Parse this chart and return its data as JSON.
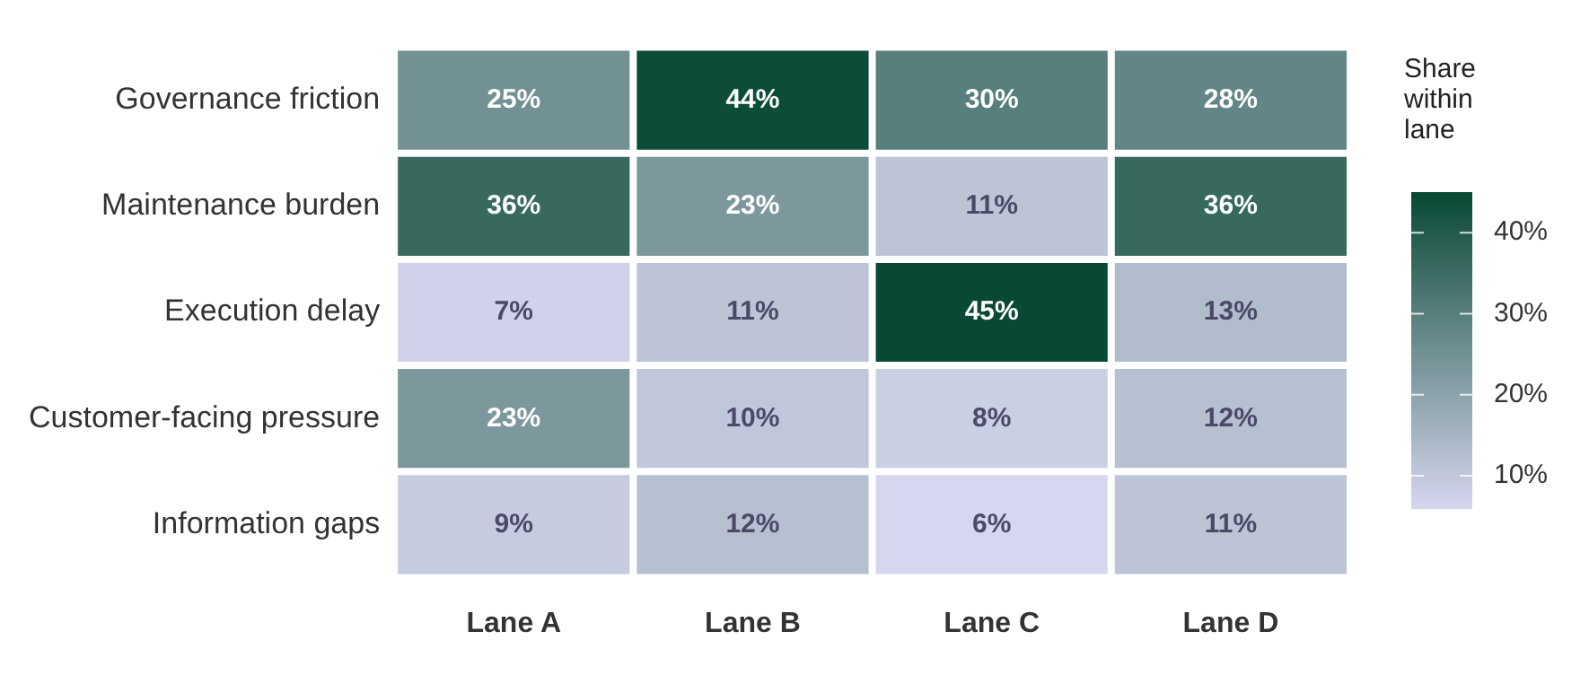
{
  "chart_data": {
    "type": "heatmap",
    "clabel": "Share within lane",
    "categories": [
      "Lane A",
      "Lane B",
      "Lane C",
      "Lane D"
    ],
    "y_categories": [
      "Governance friction",
      "Maintenance burden",
      "Execution delay",
      "Customer-facing pressure",
      "Information gaps"
    ],
    "cells": [
      [
        25,
        44,
        30,
        28
      ],
      [
        36,
        23,
        11,
        36
      ],
      [
        7,
        11,
        45,
        13
      ],
      [
        23,
        10,
        8,
        12
      ],
      [
        9,
        12,
        6,
        11
      ]
    ],
    "cell_labels": [
      [
        "25%",
        "44%",
        "30%",
        "28%"
      ],
      [
        "36%",
        "23%",
        "11%",
        "36%"
      ],
      [
        "7%",
        "11%",
        "45%",
        "13%"
      ],
      [
        "23%",
        "10%",
        "8%",
        "12%"
      ],
      [
        "9%",
        "12%",
        "6%",
        "11%"
      ]
    ],
    "clim": [
      6,
      45
    ],
    "cticks": [
      {
        "value": 10,
        "label": "10%"
      },
      {
        "value": 20,
        "label": "20%"
      },
      {
        "value": 30,
        "label": "30%"
      },
      {
        "value": 40,
        "label": "40%"
      }
    ]
  }
}
